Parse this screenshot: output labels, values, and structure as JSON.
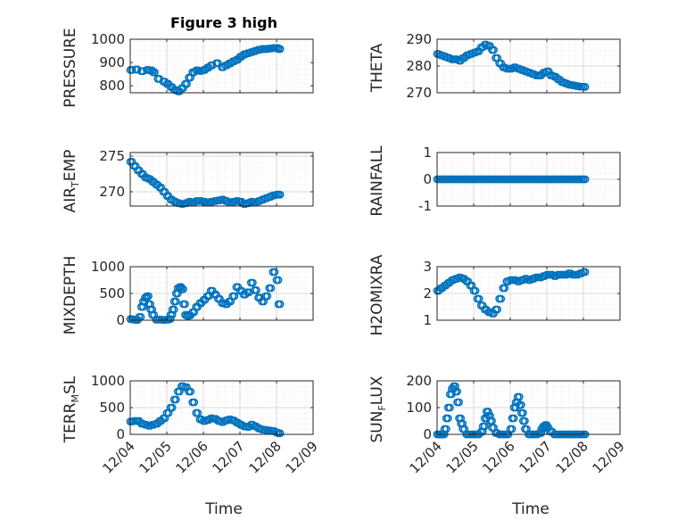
{
  "figure": {
    "title": "Figure 3 high",
    "marker_color": "#0072BD",
    "x_tick_labels": [
      "12/04",
      "12/05",
      "12/06",
      "12/07",
      "12/08",
      "12/09"
    ],
    "x_label": "Time"
  },
  "chart_data": [
    {
      "type": "scatter",
      "ylabel": "PRESSURE",
      "title": "Figure 3 high",
      "xlim": [
        0,
        5
      ],
      "ylim": [
        770,
        1000
      ],
      "yticks": [
        800,
        900,
        1000
      ],
      "grid": true,
      "x": [
        0,
        0.15,
        0.3,
        0.45,
        0.55,
        0.62,
        0.75,
        0.9,
        1.0,
        1.1,
        1.2,
        1.3,
        1.4,
        1.5,
        1.6,
        1.7,
        1.8,
        1.9,
        2.0,
        2.1,
        2.2,
        2.35,
        2.5,
        2.6,
        2.7,
        2.8,
        2.9,
        3.0,
        3.1,
        3.2,
        3.3,
        3.4,
        3.5,
        3.6,
        3.7,
        3.8,
        3.9,
        4.0,
        4.05
      ],
      "y": [
        868,
        870,
        863,
        868,
        866,
        858,
        830,
        818,
        808,
        795,
        782,
        776,
        790,
        808,
        835,
        858,
        866,
        864,
        868,
        878,
        888,
        897,
        880,
        888,
        896,
        905,
        912,
        925,
        935,
        940,
        945,
        950,
        955,
        958,
        958,
        960,
        962,
        962,
        958
      ]
    },
    {
      "type": "scatter",
      "ylabel": "THETA",
      "xlim": [
        0,
        5
      ],
      "ylim": [
        270,
        290
      ],
      "yticks": [
        270,
        280,
        290
      ],
      "grid": true,
      "x": [
        0,
        0.1,
        0.2,
        0.3,
        0.4,
        0.5,
        0.6,
        0.7,
        0.8,
        0.9,
        1.0,
        1.1,
        1.2,
        1.3,
        1.4,
        1.5,
        1.6,
        1.7,
        1.8,
        1.9,
        2.0,
        2.1,
        2.2,
        2.3,
        2.4,
        2.5,
        2.6,
        2.7,
        2.8,
        2.9,
        3.0,
        3.1,
        3.2,
        3.3,
        3.4,
        3.5,
        3.6,
        3.7,
        3.8,
        3.9,
        4.0
      ],
      "y": [
        284.5,
        284,
        283.5,
        283,
        282.5,
        282.5,
        282,
        283,
        284,
        284.5,
        285,
        285.5,
        287,
        288,
        287.5,
        286,
        283,
        281,
        279.5,
        279,
        279,
        279.5,
        279,
        278.5,
        278,
        277.5,
        277,
        276.5,
        276.5,
        277.5,
        278,
        276.5,
        276,
        275,
        274,
        273.5,
        273,
        272.8,
        272.5,
        272.3,
        272.2
      ]
    },
    {
      "type": "scatter",
      "ylabel": "AIR_TEMP",
      "xlim": [
        0,
        5
      ],
      "ylim": [
        268,
        275.5
      ],
      "yticks": [
        270,
        275
      ],
      "grid": true,
      "x": [
        0,
        0.1,
        0.2,
        0.3,
        0.4,
        0.5,
        0.6,
        0.7,
        0.8,
        0.9,
        1.0,
        1.1,
        1.2,
        1.3,
        1.4,
        1.5,
        1.6,
        1.7,
        1.8,
        1.9,
        2.0,
        2.1,
        2.2,
        2.3,
        2.4,
        2.5,
        2.6,
        2.7,
        2.8,
        2.9,
        3.0,
        3.1,
        3.2,
        3.3,
        3.4,
        3.5,
        3.6,
        3.7,
        3.8,
        3.9,
        4.0,
        4.05
      ],
      "y": [
        274.2,
        273.6,
        273,
        272.5,
        272,
        271.8,
        271.4,
        271,
        270.6,
        270,
        269.4,
        268.9,
        268.6,
        268.4,
        268.3,
        268.4,
        268.6,
        268.5,
        268.7,
        268.7,
        268.6,
        268.5,
        268.6,
        268.7,
        268.8,
        268.9,
        268.7,
        268.5,
        268.6,
        268.7,
        268.6,
        268.3,
        268.4,
        268.6,
        268.5,
        268.7,
        268.9,
        269.1,
        269.3,
        269.5,
        269.6,
        269.6
      ]
    },
    {
      "type": "scatter",
      "ylabel": "RAINFALL",
      "xlim": [
        0,
        5
      ],
      "ylim": [
        -1,
        1
      ],
      "yticks": [
        -1,
        0,
        1
      ],
      "grid": true,
      "x": [
        0,
        0.1,
        0.2,
        0.3,
        0.4,
        0.5,
        0.6,
        0.7,
        0.8,
        0.9,
        1.0,
        1.1,
        1.2,
        1.3,
        1.4,
        1.5,
        1.6,
        1.7,
        1.8,
        1.9,
        2.0,
        2.1,
        2.2,
        2.3,
        2.4,
        2.5,
        2.6,
        2.7,
        2.8,
        2.9,
        3.0,
        3.1,
        3.2,
        3.3,
        3.4,
        3.5,
        3.6,
        3.7,
        3.8,
        3.9,
        4.0
      ],
      "y": [
        0,
        0,
        0,
        0,
        0,
        0,
        0,
        0,
        0,
        0,
        0,
        0,
        0,
        0,
        0,
        0,
        0,
        0,
        0,
        0,
        0,
        0,
        0,
        0,
        0,
        0,
        0,
        0,
        0,
        0,
        0,
        0,
        0,
        0,
        0,
        0,
        0,
        0,
        0,
        0,
        0
      ]
    },
    {
      "type": "scatter",
      "ylabel": "MIXDEPTH",
      "xlim": [
        0,
        5
      ],
      "ylim": [
        0,
        1000
      ],
      "yticks": [
        0,
        500,
        1000
      ],
      "grid": true,
      "x": [
        0,
        0.08,
        0.16,
        0.24,
        0.3,
        0.35,
        0.4,
        0.45,
        0.5,
        0.55,
        0.6,
        0.7,
        0.8,
        0.9,
        1.0,
        1.05,
        1.1,
        1.15,
        1.2,
        1.25,
        1.3,
        1.35,
        1.4,
        1.45,
        1.5,
        1.55,
        1.6,
        1.7,
        1.8,
        1.9,
        2.0,
        2.1,
        2.2,
        2.3,
        2.4,
        2.5,
        2.6,
        2.7,
        2.8,
        2.9,
        3.0,
        3.1,
        3.2,
        3.3,
        3.4,
        3.5,
        3.6,
        3.7,
        3.8,
        3.9,
        4.0,
        4.05
      ],
      "y": [
        20,
        10,
        5,
        60,
        250,
        350,
        420,
        450,
        300,
        200,
        100,
        10,
        10,
        5,
        10,
        20,
        100,
        200,
        350,
        500,
        600,
        620,
        580,
        300,
        100,
        80,
        90,
        150,
        250,
        320,
        380,
        450,
        550,
        480,
        400,
        320,
        300,
        350,
        450,
        620,
        550,
        480,
        520,
        700,
        560,
        420,
        350,
        450,
        600,
        900,
        750,
        300
      ]
    },
    {
      "type": "scatter",
      "ylabel": "H2OMIXRA",
      "xlim": [
        0,
        5
      ],
      "ylim": [
        1,
        3
      ],
      "yticks": [
        1,
        2,
        3
      ],
      "grid": true,
      "x": [
        0,
        0.1,
        0.2,
        0.3,
        0.4,
        0.5,
        0.6,
        0.7,
        0.8,
        0.9,
        1.0,
        1.1,
        1.2,
        1.3,
        1.4,
        1.5,
        1.6,
        1.7,
        1.8,
        1.9,
        2.0,
        2.1,
        2.2,
        2.3,
        2.4,
        2.5,
        2.6,
        2.7,
        2.8,
        2.9,
        3.0,
        3.1,
        3.2,
        3.3,
        3.4,
        3.5,
        3.6,
        3.7,
        3.8,
        3.9,
        4.0
      ],
      "y": [
        2.1,
        2.2,
        2.3,
        2.4,
        2.5,
        2.55,
        2.6,
        2.55,
        2.45,
        2.3,
        2.1,
        1.8,
        1.55,
        1.4,
        1.3,
        1.25,
        1.4,
        1.8,
        2.2,
        2.45,
        2.5,
        2.5,
        2.45,
        2.5,
        2.55,
        2.5,
        2.55,
        2.6,
        2.6,
        2.65,
        2.7,
        2.7,
        2.65,
        2.7,
        2.7,
        2.7,
        2.75,
        2.7,
        2.7,
        2.75,
        2.8
      ]
    },
    {
      "type": "scatter",
      "ylabel": "TERR_MSL",
      "xlim": [
        0,
        5
      ],
      "ylim": [
        0,
        1000
      ],
      "yticks": [
        0,
        500,
        1000
      ],
      "grid": true,
      "x": [
        0,
        0.1,
        0.2,
        0.3,
        0.4,
        0.5,
        0.6,
        0.7,
        0.8,
        0.9,
        1.0,
        1.1,
        1.2,
        1.3,
        1.4,
        1.5,
        1.6,
        1.7,
        1.8,
        1.9,
        2.0,
        2.1,
        2.2,
        2.3,
        2.4,
        2.5,
        2.6,
        2.7,
        2.8,
        2.9,
        3.0,
        3.1,
        3.2,
        3.3,
        3.4,
        3.5,
        3.6,
        3.7,
        3.8,
        3.9,
        4.0,
        4.05
      ],
      "y": [
        240,
        250,
        250,
        200,
        180,
        160,
        180,
        200,
        250,
        300,
        400,
        500,
        650,
        800,
        900,
        880,
        800,
        600,
        400,
        280,
        250,
        270,
        300,
        290,
        250,
        230,
        260,
        280,
        260,
        220,
        180,
        150,
        140,
        180,
        150,
        110,
        90,
        80,
        70,
        60,
        30,
        20
      ]
    },
    {
      "type": "scatter",
      "ylabel": "SUN_FLUX",
      "xlim": [
        0,
        5
      ],
      "ylim": [
        0,
        200
      ],
      "yticks": [
        0,
        100,
        200
      ],
      "grid": true,
      "x": [
        0,
        0.05,
        0.1,
        0.15,
        0.2,
        0.25,
        0.3,
        0.35,
        0.4,
        0.45,
        0.5,
        0.55,
        0.6,
        0.65,
        0.7,
        0.8,
        0.9,
        1.0,
        1.1,
        1.2,
        1.25,
        1.3,
        1.35,
        1.4,
        1.45,
        1.5,
        1.6,
        1.7,
        1.8,
        1.9,
        2.0,
        2.05,
        2.1,
        2.15,
        2.2,
        2.25,
        2.3,
        2.35,
        2.4,
        2.5,
        2.6,
        2.7,
        2.8,
        2.85,
        2.9,
        2.95,
        3.0,
        3.1,
        3.2,
        3.3,
        3.4,
        3.5,
        3.6,
        3.7,
        3.8,
        3.9,
        4.0
      ],
      "y": [
        0,
        0,
        0,
        0,
        20,
        60,
        100,
        150,
        170,
        180,
        160,
        120,
        60,
        40,
        20,
        0,
        0,
        0,
        0,
        10,
        30,
        60,
        85,
        70,
        50,
        25,
        5,
        0,
        0,
        0,
        20,
        60,
        100,
        120,
        140,
        110,
        80,
        50,
        20,
        0,
        0,
        0,
        5,
        20,
        30,
        35,
        25,
        10,
        0,
        0,
        0,
        0,
        0,
        0,
        0,
        0,
        0
      ]
    }
  ]
}
